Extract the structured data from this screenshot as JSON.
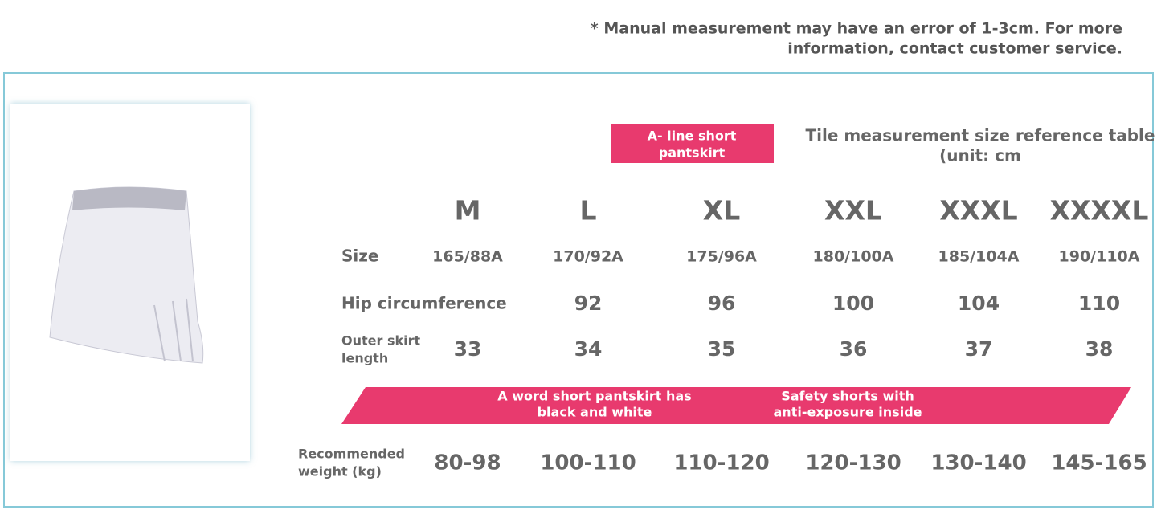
{
  "note": [
    "* Manual measurement may have an error of 1-3cm. For more",
    "information, contact customer service."
  ],
  "badge": [
    "A- line short",
    "pantskirt"
  ],
  "table": {
    "title": [
      "Tile measurement size reference table",
      "(unit: cm"
    ],
    "columns": [
      "M",
      "L",
      "XL",
      "XXL",
      "XXXL",
      "XXXXL"
    ],
    "rows": [
      {
        "label": [
          "Size"
        ],
        "cells": [
          "165/88A",
          "170/92A",
          "175/96A",
          "180/100A",
          "185/104A",
          "190/110A"
        ]
      },
      {
        "label": [
          "Hip circumference"
        ],
        "cells": [
          null,
          92,
          96,
          100,
          104,
          110
        ]
      },
      {
        "label": [
          "Outer skirt",
          "length"
        ],
        "cells": [
          33,
          34,
          35,
          36,
          37,
          38
        ]
      },
      {
        "label": [
          "Recommended",
          "weight (kg)"
        ],
        "cells": [
          "80-98",
          "100-110",
          "110-120",
          "120-130",
          "130-140",
          "145-165"
        ]
      }
    ]
  },
  "banner": [
    [
      "A word short pantskirt has",
      "black and white"
    ],
    [
      "Safety shorts with",
      "anti-exposure inside"
    ]
  ]
}
